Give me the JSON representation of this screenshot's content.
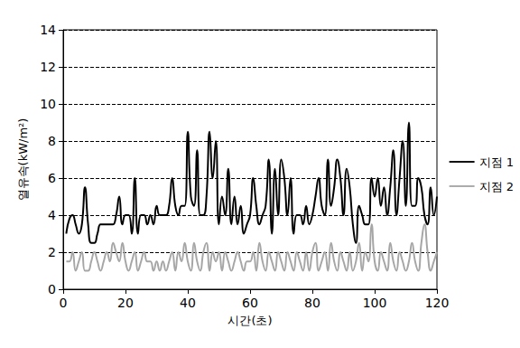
{
  "chart_data": {
    "type": "line",
    "xlabel": "시간(초)",
    "ylabel": "열유속(kW/m²)",
    "x": [
      1,
      2,
      3,
      4,
      5,
      6,
      7,
      8,
      9,
      10,
      11,
      12,
      13,
      14,
      15,
      16,
      17,
      18,
      19,
      20,
      21,
      22,
      23,
      24,
      25,
      26,
      27,
      28,
      29,
      30,
      31,
      32,
      33,
      34,
      35,
      36,
      37,
      38,
      39,
      40,
      41,
      42,
      43,
      44,
      45,
      46,
      47,
      48,
      49,
      50,
      51,
      52,
      53,
      54,
      55,
      56,
      57,
      58,
      59,
      60,
      61,
      62,
      63,
      64,
      65,
      66,
      67,
      68,
      69,
      70,
      71,
      72,
      73,
      74,
      75,
      76,
      77,
      78,
      79,
      80,
      81,
      82,
      83,
      84,
      85,
      86,
      87,
      88,
      89,
      90,
      91,
      92,
      93,
      94,
      95,
      96,
      97,
      98,
      99,
      100,
      101,
      102,
      103,
      104,
      105,
      106,
      107,
      108,
      109,
      110,
      111,
      112,
      113,
      114,
      115,
      116,
      117,
      118,
      119,
      120
    ],
    "series": [
      {
        "name": "지점 1",
        "color": "#000000",
        "values": [
          3,
          3.8,
          4,
          3.5,
          3,
          3.5,
          5.5,
          3.5,
          2.5,
          2.5,
          3,
          3.5,
          3.5,
          3.5,
          3.5,
          3.5,
          4,
          5,
          3.5,
          4,
          4,
          3,
          6,
          3,
          4,
          4,
          3.5,
          4,
          3.5,
          4.5,
          4,
          4,
          4,
          4.5,
          6,
          4.5,
          4,
          4.5,
          4.5,
          8.5,
          5,
          4.5,
          7.5,
          4,
          4,
          5,
          8.5,
          6,
          8,
          3.5,
          5,
          4,
          6.5,
          3.5,
          5,
          3.5,
          4.5,
          3,
          3.5,
          4,
          6,
          4.5,
          3.5,
          4,
          4.5,
          7,
          3,
          6.5,
          4,
          7,
          6,
          4,
          6,
          3,
          4,
          4,
          3.5,
          4.5,
          3.5,
          4,
          5,
          6,
          4.5,
          4,
          7,
          4.5,
          5.5,
          7,
          6,
          4,
          6.5,
          5.5,
          3.5,
          2.5,
          4.5,
          4,
          3.5,
          3.5,
          6,
          5,
          6,
          4.5,
          5.5,
          4,
          5.5,
          7.5,
          4,
          6,
          8,
          4.5,
          9,
          4.5,
          4.5,
          6,
          5.5,
          4,
          3.5,
          5.5,
          4,
          5
        ]
      },
      {
        "name": "지점 2",
        "color": "#a6a6a6",
        "values": [
          1.5,
          1.5,
          2,
          1,
          1.5,
          2,
          1,
          1,
          1.5,
          2,
          1.5,
          1,
          1.5,
          2,
          1.5,
          2.5,
          2,
          1.5,
          2.5,
          1.5,
          1,
          1.5,
          2,
          1,
          1.5,
          2,
          1.5,
          1.5,
          1,
          1.5,
          1,
          1.5,
          1,
          1.5,
          2,
          1,
          2,
          1.5,
          2.5,
          1.5,
          1,
          2.5,
          1.5,
          1,
          2,
          2.5,
          1,
          2,
          1.5,
          2,
          1,
          2,
          1.5,
          1,
          1.5,
          2,
          1.5,
          1,
          1.5,
          1.5,
          2,
          1,
          2.5,
          1.5,
          1,
          2,
          1.5,
          1,
          2,
          1.5,
          1,
          2,
          1.5,
          1,
          2,
          1.5,
          1,
          2,
          1,
          2,
          2.5,
          1,
          1.5,
          2,
          1,
          2.5,
          1.5,
          1,
          2,
          1.5,
          1,
          2,
          1,
          1.5,
          2.5,
          1,
          2,
          1.5,
          3.5,
          1.5,
          1,
          2,
          1.5,
          1,
          2.5,
          1.5,
          1,
          2,
          1.5,
          1,
          1.5,
          2.5,
          1.5,
          1,
          2.5,
          3.5,
          2,
          1,
          1.5,
          2
        ]
      }
    ],
    "xlim": [
      0,
      120
    ],
    "xticks": [
      0,
      20,
      40,
      60,
      80,
      100,
      120
    ],
    "ylim": [
      0,
      14
    ],
    "yticks": [
      0,
      2,
      4,
      6,
      8,
      10,
      12,
      14
    ],
    "grid": true,
    "legend": "right",
    "marker": "none"
  }
}
